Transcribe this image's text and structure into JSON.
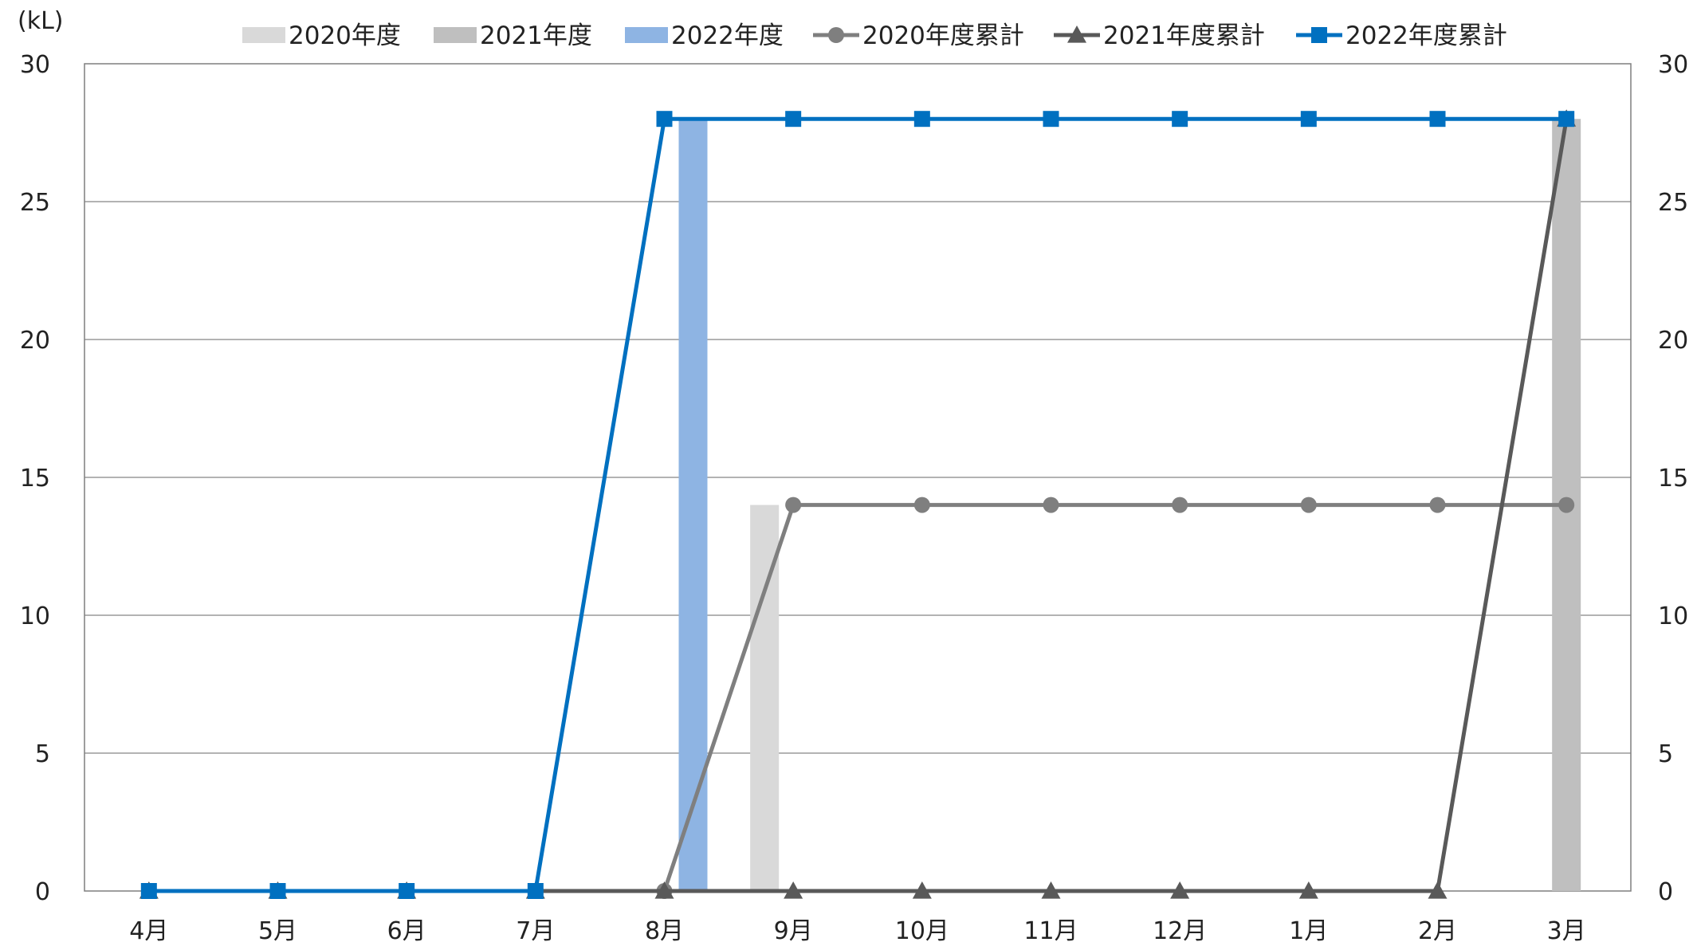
{
  "chart_data": {
    "type": "bar",
    "unit_label": "(kL)",
    "categories": [
      "4月",
      "5月",
      "6月",
      "7月",
      "8月",
      "9月",
      "10月",
      "11月",
      "12月",
      "1月",
      "2月",
      "3月"
    ],
    "ylim": [
      0,
      30
    ],
    "y_ticks": [
      0,
      5,
      10,
      15,
      20,
      25,
      30
    ],
    "y_ticks_right": [
      0,
      5,
      10,
      15,
      20,
      25,
      30
    ],
    "grid": true,
    "legend_position": "top",
    "bar_series": [
      {
        "name": "2020年度",
        "color": "#d9d9d9",
        "values": [
          0,
          0,
          0,
          0,
          0,
          14,
          0,
          0,
          0,
          0,
          0,
          0
        ]
      },
      {
        "name": "2021年度",
        "color": "#bfbfbf",
        "values": [
          0,
          0,
          0,
          0,
          0,
          0,
          0,
          0,
          0,
          0,
          0,
          28
        ]
      },
      {
        "name": "2022年度",
        "color": "#8eb4e3",
        "values": [
          0,
          0,
          0,
          0,
          28,
          0,
          0,
          0,
          0,
          0,
          0,
          0
        ]
      }
    ],
    "line_series": [
      {
        "name": "2020年度累計",
        "color": "#7f7f7f",
        "marker": "circle",
        "values": [
          null,
          null,
          null,
          null,
          0,
          14,
          14,
          14,
          14,
          14,
          14,
          14
        ]
      },
      {
        "name": "2021年度累計",
        "color": "#595959",
        "marker": "triangle",
        "values": [
          0,
          0,
          0,
          0,
          0,
          0,
          0,
          0,
          0,
          0,
          0,
          28
        ]
      },
      {
        "name": "2022年度累計",
        "color": "#0070c0",
        "marker": "square",
        "values": [
          0,
          0,
          0,
          0,
          28,
          28,
          28,
          28,
          28,
          28,
          28,
          28
        ]
      }
    ]
  }
}
